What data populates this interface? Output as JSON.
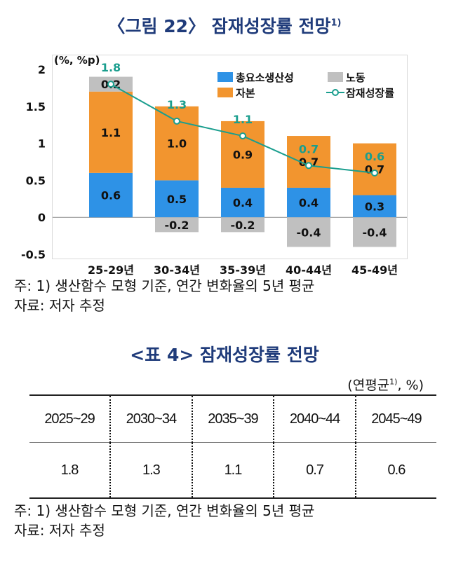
{
  "figure": {
    "title": "〈그림 22〉 잠재성장률 전망",
    "title_sup": "1)",
    "notes": [
      "주: 1) 생산함수 모형 기준, 연간 변화율의 5년 평균",
      "자료: 저자 추정"
    ]
  },
  "chart_data": {
    "type": "bar",
    "stacked": true,
    "unit_label": "(%, %p)",
    "categories": [
      "25-29년",
      "30-34년",
      "35-39년",
      "40-44년",
      "45-49년"
    ],
    "series": [
      {
        "name": "총요소생산성",
        "kind": "bar",
        "color": "#2e92e6",
        "values": [
          0.6,
          0.5,
          0.4,
          0.4,
          0.3
        ],
        "labels": [
          "0.6",
          "0.5",
          "0.4",
          "0.4",
          "0.3"
        ]
      },
      {
        "name": "자본",
        "kind": "bar",
        "color": "#f2952f",
        "values": [
          1.1,
          1.0,
          0.9,
          0.7,
          0.7
        ],
        "labels": [
          "1.1",
          "1.0",
          "0.9",
          "0.7",
          "0.7"
        ]
      },
      {
        "name": "노동",
        "kind": "bar",
        "color": "#c0c0c0",
        "values": [
          0.2,
          -0.2,
          -0.2,
          -0.4,
          -0.4
        ],
        "labels": [
          "0.2",
          "-0.2",
          "-0.2",
          "-0.4",
          "-0.4"
        ]
      },
      {
        "name": "잠재성장률",
        "kind": "line",
        "color": "#1a9e8e",
        "values": [
          1.8,
          1.3,
          1.1,
          0.7,
          0.6
        ],
        "labels": [
          "1.8",
          "1.3",
          "1.1",
          "0.7",
          "0.6"
        ]
      }
    ],
    "ylim": [
      -0.5,
      2
    ],
    "yticks": [
      "-0.5",
      "0",
      "0.5",
      "1",
      "1.5",
      "2"
    ],
    "grid": false,
    "legend": "top-right"
  },
  "table": {
    "title": "<표 4> 잠재성장률 전망",
    "unit": "(연평균",
    "unit_sup": "1)",
    "unit_end": ", %)",
    "headers": [
      "2025~29",
      "2030~34",
      "2035~39",
      "2040~44",
      "2045~49"
    ],
    "values": [
      "1.8",
      "1.3",
      "1.1",
      "0.7",
      "0.6"
    ],
    "notes": [
      "주: 1) 생산함수 모형 기준, 연간 변화율의 5년 평균",
      "자료: 저자 추정"
    ]
  }
}
